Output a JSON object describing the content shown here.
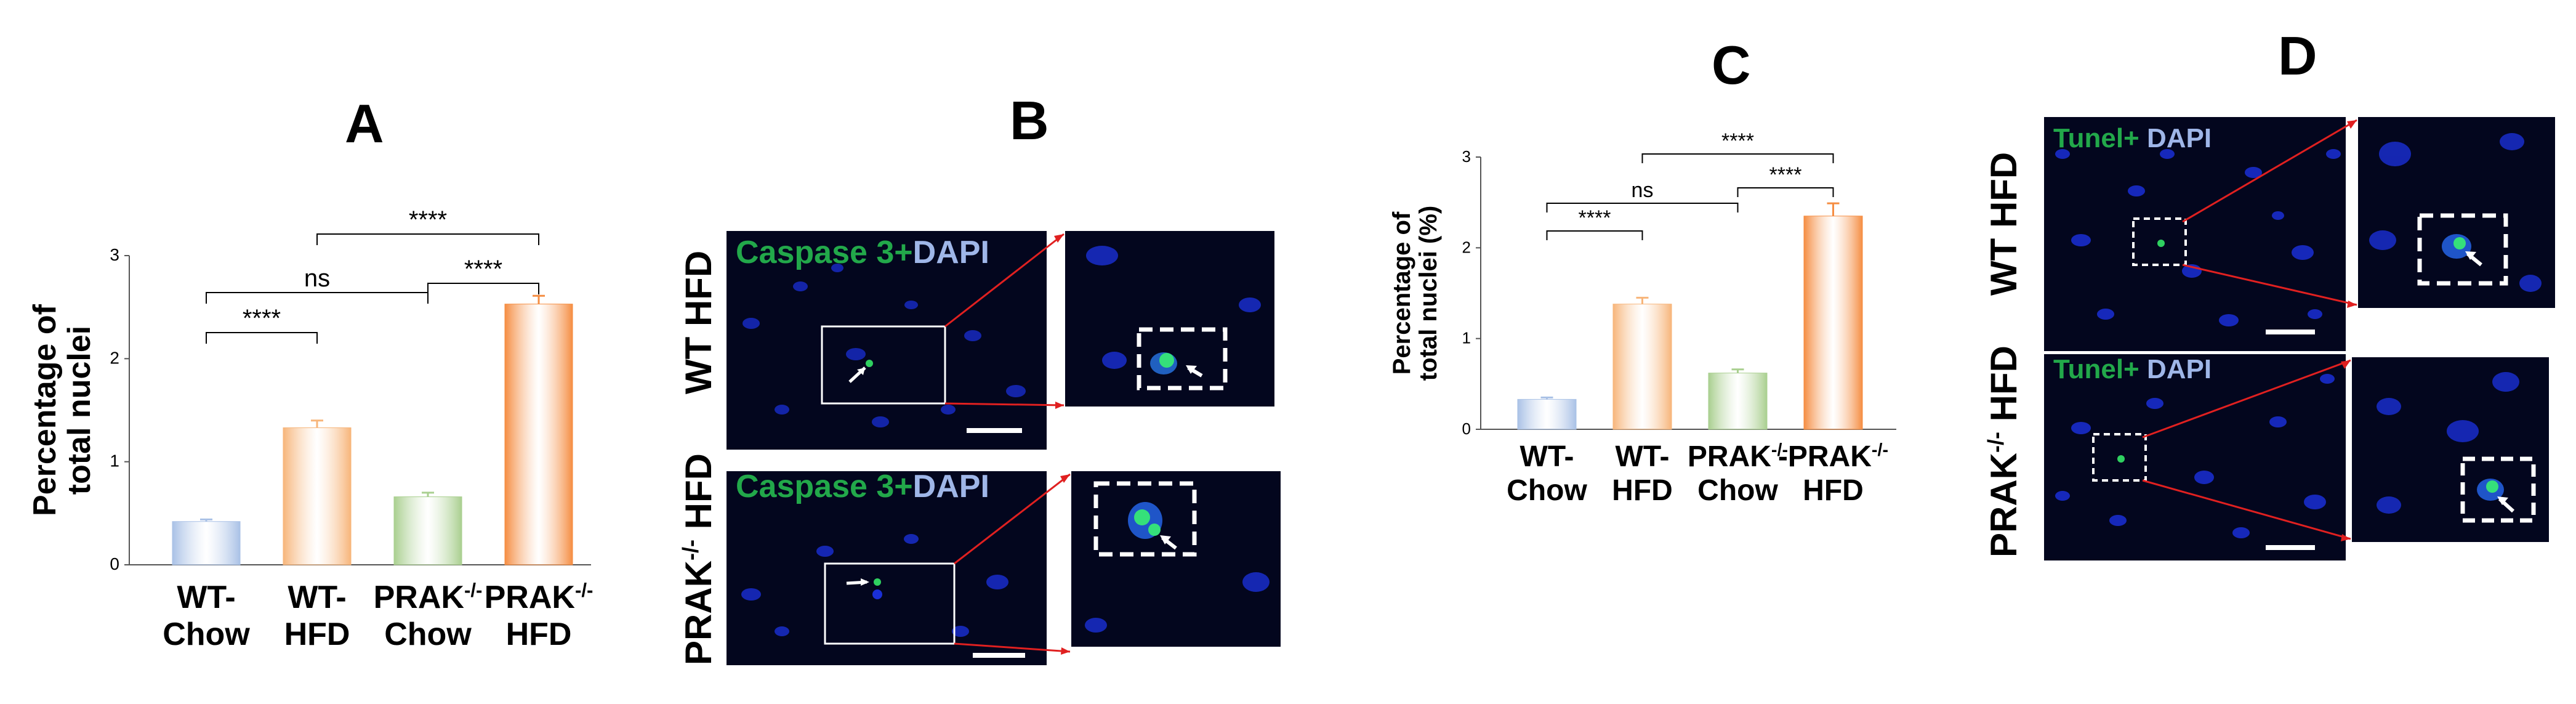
{
  "panels": {
    "A": "A",
    "B": "B",
    "C": "C",
    "D": "D"
  },
  "chart_data": [
    {
      "type": "bar",
      "panel": "A",
      "ylabel": [
        "Percentage of",
        "total nuclei"
      ],
      "ylim": [
        0,
        3
      ],
      "yticks": [
        "0",
        "1",
        "2",
        "3"
      ],
      "categories": [
        [
          "WT-",
          "Chow"
        ],
        [
          "WT-",
          "HFD"
        ],
        [
          "PRAK-/-",
          "Chow"
        ],
        [
          "PRAK-/-",
          "HFD"
        ]
      ],
      "values": [
        0.42,
        1.33,
        0.66,
        2.53
      ],
      "errors": [
        0.02,
        0.07,
        0.04,
        0.08
      ],
      "colors": [
        "#a9c1e6",
        "#f7b57a",
        "#a9cf8f",
        "#f58d42"
      ],
      "significance": [
        {
          "from": 0,
          "to": 1,
          "label": "****"
        },
        {
          "from": 0,
          "to": 2,
          "label": "ns"
        },
        {
          "from": 2,
          "to": 3,
          "label": "****"
        },
        {
          "from": 1,
          "to": 3,
          "label": "****"
        }
      ]
    },
    {
      "type": "bar",
      "panel": "C",
      "ylabel": [
        "Percentage of",
        "total nuclei (%)"
      ],
      "ylim": [
        0,
        3
      ],
      "yticks": [
        "0",
        "1",
        "2",
        "3"
      ],
      "categories": [
        [
          "WT-",
          "Chow"
        ],
        [
          "WT-",
          "HFD"
        ],
        [
          "PRAK-/-",
          "Chow"
        ],
        [
          "-PRAK-/-",
          "HFD"
        ]
      ],
      "values": [
        0.33,
        1.38,
        0.62,
        2.35
      ],
      "errors": [
        0.02,
        0.07,
        0.04,
        0.14
      ],
      "colors": [
        "#a9c1e6",
        "#f7b57a",
        "#a9cf8f",
        "#f58d42"
      ],
      "significance": [
        {
          "from": 0,
          "to": 1,
          "label": "****"
        },
        {
          "from": 0,
          "to": 2,
          "label": "ns"
        },
        {
          "from": 2,
          "to": 3,
          "label": "****"
        },
        {
          "from": 1,
          "to": 3,
          "label": "****"
        }
      ]
    }
  ],
  "panel_B": {
    "row1_label": "WT HFD",
    "row2_label_prefix": "PRAK",
    "row2_label_sup": "-/-",
    "row2_label_suffix": " HFD",
    "stain_green": "Caspase 3+",
    "stain_blue": "DAPI"
  },
  "panel_D": {
    "row1_label": "WT HFD",
    "row2_label_prefix": "PRAK",
    "row2_label_sup": "-/-",
    "row2_label_suffix": " HFD",
    "stain_green": "Tunel+",
    "stain_blue": " DAPI"
  },
  "colors": {
    "stain_green": "#22a84a",
    "stain_blue": "#9fb6e8",
    "zoom_line": "#e02020",
    "micro_bg": "#03061e",
    "nuclei": "#1a2fd6"
  }
}
